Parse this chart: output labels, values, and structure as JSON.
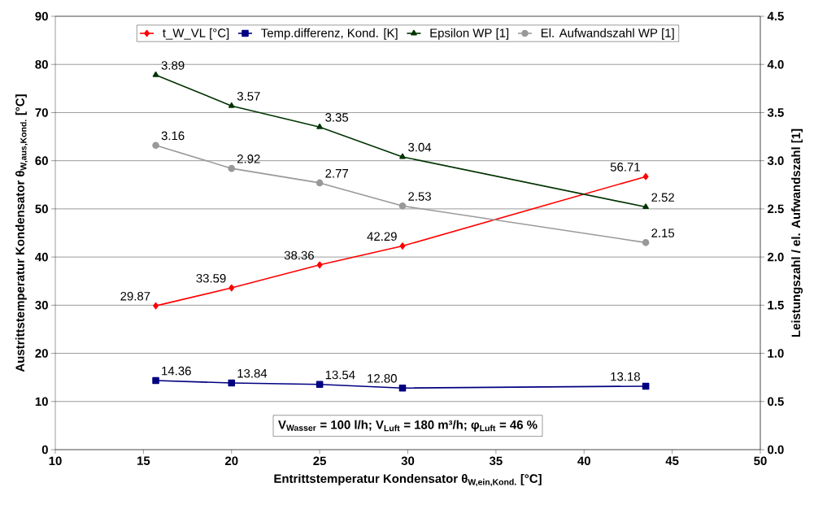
{
  "chart_data": {
    "type": "line",
    "xlabel": "Entrittstemperatur Kondensator θ$_{W,ein,Kond.}$ [°C]",
    "ylabel": "Austrittstemperatur Kondensator θ$_{W,aus,Kond.}$ [°C]",
    "y2label": "Leistungszahl / el. Aufwandszahl [1]",
    "x": [
      15.7,
      20.0,
      25.0,
      29.7,
      43.5
    ],
    "series": [
      {
        "name": "t_W_VL [°C]",
        "color": "#ff0000",
        "marker": "diamond",
        "values": [
          29.87,
          33.59,
          38.36,
          42.29,
          56.71
        ],
        "value_labels": [
          "29.87",
          "33.59",
          "38.36",
          "42.29",
          "56.71"
        ]
      },
      {
        "name": "Temp.differenz, Kond. [K]",
        "color": "#000080",
        "marker": "square",
        "values": [
          14.36,
          13.84,
          13.54,
          12.8,
          13.18
        ],
        "value_labels": [
          "14.36",
          "13.84",
          "13.54",
          "12.80",
          "13.18"
        ]
      },
      {
        "name": "Epsilon WP [1]",
        "color": "#003300",
        "marker": "triangle",
        "axis": "y2",
        "values": [
          3.89,
          3.57,
          3.35,
          3.04,
          2.52
        ],
        "value_labels": [
          "3.89",
          "3.57",
          "3.35",
          "3.04",
          "2.52"
        ]
      },
      {
        "name": "El. Aufwandszahl WP [1]",
        "color": "#999999",
        "marker": "circle",
        "axis": "y2",
        "values": [
          3.16,
          2.92,
          2.77,
          2.53,
          2.15
        ],
        "value_labels": [
          "3.16",
          "2.92",
          "2.77",
          "2.53",
          "2.15"
        ]
      }
    ],
    "xlim": [
      10,
      50
    ],
    "xticks": [
      10,
      15,
      20,
      25,
      30,
      35,
      40,
      45,
      50
    ],
    "ylim": [
      0,
      90
    ],
    "yticks": [
      0,
      10,
      20,
      30,
      40,
      50,
      60,
      70,
      80,
      90
    ],
    "y2lim": [
      0,
      4.5
    ],
    "y2ticks": [
      {
        "value": 0,
        "label": "0.0"
      },
      {
        "value": 0.5,
        "label": "0.5"
      },
      {
        "value": 1,
        "label": "1.0"
      },
      {
        "value": 1.5,
        "label": "1.5"
      },
      {
        "value": 2,
        "label": "2.0"
      },
      {
        "value": 2.5,
        "label": "2.5"
      },
      {
        "value": 3,
        "label": "3.0"
      },
      {
        "value": 3.5,
        "label": "3.5"
      },
      {
        "value": 4,
        "label": "4.0"
      },
      {
        "value": 4.5,
        "label": "4.5"
      }
    ],
    "grid": "y",
    "legend": "top",
    "annotations": [
      "V$_{Wasser}$ = 100 l/h; V$_{Luft}$ = 180 m³/h; φ$_{Luft}$ = 46 %"
    ]
  }
}
